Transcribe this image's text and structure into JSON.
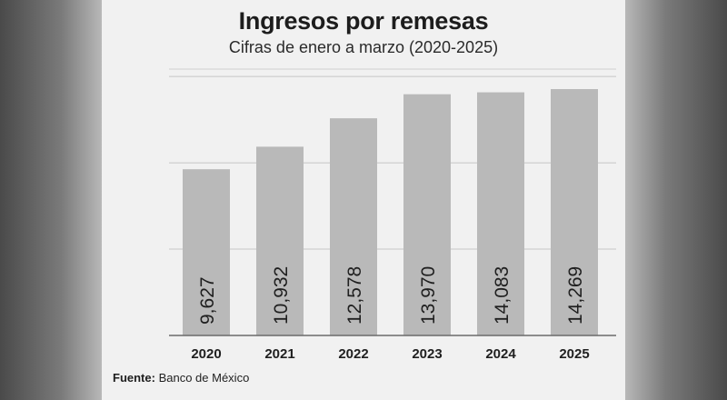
{
  "chart_data": {
    "type": "bar",
    "title": "Ingresos por remesas",
    "subtitle": "Cifras de enero a marzo (2020-2025)",
    "categories": [
      "2020",
      "2021",
      "2022",
      "2023",
      "2024",
      "2025"
    ],
    "values": [
      9627,
      10932,
      12578,
      13970,
      14083,
      14269
    ],
    "value_labels": [
      "9,627",
      "10,932",
      "12,578",
      "13,970",
      "14,083",
      "14,269"
    ],
    "xlabel": "",
    "ylabel": "",
    "grid": true,
    "bar_color": "#b9b9b9"
  },
  "source": {
    "label": "Fuente:",
    "text": "Banco de México"
  }
}
